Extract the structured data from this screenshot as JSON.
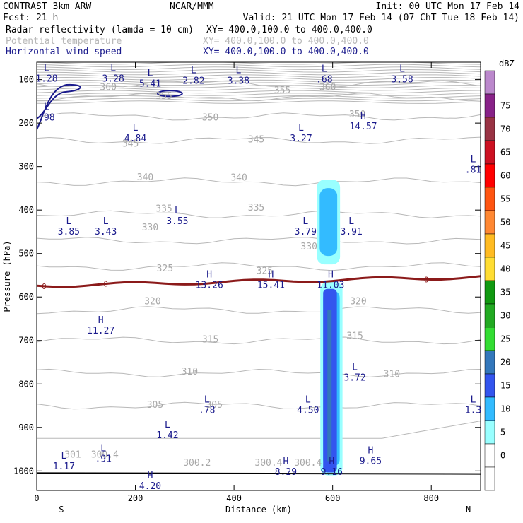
{
  "header": {
    "left1": "CONTRAST  3km ARW",
    "center1": "NCAR/MMM",
    "right1": "Init: 00 UTC Mon 17 Feb 14",
    "left2": "Fcst:    21 h",
    "right2": "Valid: 21 UTC Mon 17 Feb 14 (07 ChT Tue 18 Feb 14)",
    "field1": "Radar reflectivity (lamda = 10 cm)",
    "xy1": "XY= 400.0,100.0 to 400.0,400.0",
    "field2": "Potential temperature",
    "xy2": "XY= 400.0,100.0 to 400.0,400.0",
    "field3": "Horizontal wind speed",
    "xy3": "XY= 400.0,100.0 to 400.0,400.0"
  },
  "colors": {
    "theta": "#b8b8b8",
    "wind": "#1a1a8c",
    "freezing": "#8b1a1a",
    "ground": "#000000"
  },
  "chart_data": {
    "type": "contour-cross-section",
    "xlabel": "Distance (km)",
    "ylabel": "Pressure (hPa)",
    "xlim": [
      0,
      900
    ],
    "ylim": [
      1045,
      60
    ],
    "x_ticks": [
      0,
      200,
      400,
      600,
      800
    ],
    "x_tick_labels": [
      "0",
      "200",
      "400",
      "600",
      "800"
    ],
    "y_ticks": [
      100,
      200,
      300,
      400,
      500,
      600,
      700,
      800,
      900,
      1000
    ],
    "y_tick_labels": [
      "100",
      "200",
      "300",
      "400",
      "500",
      "600",
      "700",
      "800",
      "900",
      "1000"
    ],
    "left_end_label": "S",
    "right_end_label": "N",
    "colorbar": {
      "unit": "dBZ",
      "levels": [
        0,
        5,
        10,
        15,
        20,
        25,
        30,
        35,
        40,
        45,
        50,
        55,
        60,
        65,
        70,
        75
      ],
      "labels": [
        "0",
        "5",
        "10",
        "15",
        "20",
        "25",
        "30",
        "35",
        "40",
        "45",
        "50",
        "55",
        "60",
        "65",
        "70",
        "75"
      ],
      "colors": [
        "#ffffff",
        "#ffffff",
        "#99ffff",
        "#33bbff",
        "#3355ee",
        "#3377bb",
        "#33dd33",
        "#22aa22",
        "#119911",
        "#ffdd33",
        "#ffbb22",
        "#ff8833",
        "#ff5511",
        "#ff0000",
        "#cc1122",
        "#993344",
        "#882288",
        "#bb88cc"
      ]
    },
    "theta_isentropes": [
      {
        "theta": 360,
        "pressure": 110
      },
      {
        "theta": 355,
        "pressure": 140
      },
      {
        "theta": 350,
        "pressure": 185
      },
      {
        "theta": 345,
        "pressure": 240
      },
      {
        "theta": 340,
        "pressure": 335
      },
      {
        "theta": 335,
        "pressure": 410
      },
      {
        "theta": 330,
        "pressure": 470
      },
      {
        "theta": 325,
        "pressure": 530
      },
      {
        "theta": 320,
        "pressure": 630
      },
      {
        "theta": 315,
        "pressure": 700
      },
      {
        "theta": 310,
        "pressure": 775
      },
      {
        "theta": 305,
        "pressure": 850
      }
    ],
    "theta_labels": [
      {
        "text": "360",
        "x": 145,
        "p": 118
      },
      {
        "text": "360",
        "x": 590,
        "p": 118
      },
      {
        "text": "355",
        "x": 258,
        "p": 138
      },
      {
        "text": "355",
        "x": 498,
        "p": 125
      },
      {
        "text": "350",
        "x": 352,
        "p": 188
      },
      {
        "text": "350",
        "x": 650,
        "p": 180
      },
      {
        "text": "345",
        "x": 190,
        "p": 248
      },
      {
        "text": "345",
        "x": 445,
        "p": 238
      },
      {
        "text": "340",
        "x": 220,
        "p": 325
      },
      {
        "text": "340",
        "x": 410,
        "p": 326
      },
      {
        "text": "335",
        "x": 258,
        "p": 397
      },
      {
        "text": "335",
        "x": 445,
        "p": 395
      },
      {
        "text": "330",
        "x": 230,
        "p": 440
      },
      {
        "text": "330",
        "x": 552,
        "p": 484
      },
      {
        "text": "325",
        "x": 260,
        "p": 535
      },
      {
        "text": "325",
        "x": 462,
        "p": 540
      },
      {
        "text": "320",
        "x": 235,
        "p": 610
      },
      {
        "text": "320",
        "x": 652,
        "p": 610
      },
      {
        "text": "315",
        "x": 352,
        "p": 698
      },
      {
        "text": "315",
        "x": 645,
        "p": 690
      },
      {
        "text": "310",
        "x": 310,
        "p": 772
      },
      {
        "text": "310",
        "x": 720,
        "p": 778
      },
      {
        "text": "305",
        "x": 240,
        "p": 848
      },
      {
        "text": "305",
        "x": 360,
        "p": 848
      },
      {
        "text": "301",
        "x": 73,
        "p": 963
      },
      {
        "text": "300.4",
        "x": 138,
        "p": 963
      },
      {
        "text": "300.2",
        "x": 325,
        "p": 982
      },
      {
        "text": "300.4",
        "x": 470,
        "p": 982
      },
      {
        "text": "300.4",
        "x": 550,
        "p": 982
      }
    ],
    "wind_extrema": [
      {
        "type": "L",
        "value": "1.28",
        "x": 20,
        "p": 80
      },
      {
        "type": "L",
        "value": "3.28",
        "x": 155,
        "p": 80
      },
      {
        "type": "L",
        "value": "5.41",
        "x": 230,
        "p": 92
      },
      {
        "type": "L",
        "value": "2.82",
        "x": 318,
        "p": 85
      },
      {
        "type": "L",
        "value": "3.38",
        "x": 409,
        "p": 85
      },
      {
        "type": "L",
        "value": ".68",
        "x": 583,
        "p": 82
      },
      {
        "type": "L",
        "value": "3.58",
        "x": 741,
        "p": 82
      },
      {
        "type": "L",
        "value": ".98",
        "x": 20,
        "p": 170
      },
      {
        "type": "L",
        "value": "4.84",
        "x": 200,
        "p": 218
      },
      {
        "type": "L",
        "value": "3.27",
        "x": 536,
        "p": 218
      },
      {
        "type": "H",
        "value": "14.57",
        "x": 662,
        "p": 190
      },
      {
        "type": "L",
        "value": ".81",
        "x": 885,
        "p": 290
      },
      {
        "type": "L",
        "value": "3.85",
        "x": 65,
        "p": 432
      },
      {
        "type": "L",
        "value": "3.43",
        "x": 140,
        "p": 432
      },
      {
        "type": "L",
        "value": "3.55",
        "x": 285,
        "p": 408
      },
      {
        "type": "L",
        "value": "3.79",
        "x": 545,
        "p": 432
      },
      {
        "type": "L",
        "value": "3.91",
        "x": 638,
        "p": 432
      },
      {
        "type": "H",
        "value": "13.26",
        "x": 350,
        "p": 555
      },
      {
        "type": "H",
        "value": "15.41",
        "x": 475,
        "p": 555
      },
      {
        "type": "H",
        "value": "11.03",
        "x": 596,
        "p": 555
      },
      {
        "type": "H",
        "value": "11.27",
        "x": 130,
        "p": 660
      },
      {
        "type": "L",
        "value": "3.72",
        "x": 645,
        "p": 768
      },
      {
        "type": "L",
        "value": ".78",
        "x": 345,
        "p": 843
      },
      {
        "type": "L",
        "value": "4.50",
        "x": 550,
        "p": 843
      },
      {
        "type": "L",
        "value": "1.3",
        "x": 885,
        "p": 843
      },
      {
        "type": "L",
        "value": "1.42",
        "x": 265,
        "p": 900
      },
      {
        "type": "L",
        "value": "1.17",
        "x": 55,
        "p": 972
      },
      {
        "type": "L",
        "value": ".91",
        "x": 135,
        "p": 955
      },
      {
        "type": "H",
        "value": "8.29",
        "x": 505,
        "p": 985
      },
      {
        "type": "H",
        "value": "9.16",
        "x": 598,
        "p": 985
      },
      {
        "type": "H",
        "value": "9.65",
        "x": 677,
        "p": 960
      },
      {
        "type": "H",
        "value": "4.20",
        "x": 230,
        "p": 1017
      }
    ],
    "freezing_level_label": "0",
    "freezing_level_pressure": 562,
    "reflectivity_cells": [
      {
        "x_min": 575,
        "x_max": 620,
        "p_top": 565,
        "p_bottom": 1010,
        "max_dbz": 20
      },
      {
        "x_min": 568,
        "x_max": 615,
        "p_top": 330,
        "p_bottom": 525,
        "max_dbz": 15
      }
    ]
  }
}
